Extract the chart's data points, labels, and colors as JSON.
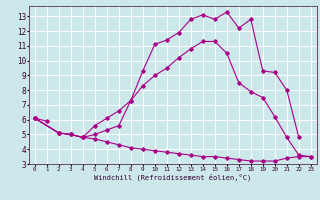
{
  "xlabel": "Windchill (Refroidissement éolien,°C)",
  "xlim": [
    -0.5,
    23.5
  ],
  "ylim": [
    3.0,
    13.7
  ],
  "xticks": [
    0,
    1,
    2,
    3,
    4,
    5,
    6,
    7,
    8,
    9,
    10,
    11,
    12,
    13,
    14,
    15,
    16,
    17,
    18,
    19,
    20,
    21,
    22,
    23
  ],
  "yticks": [
    3,
    4,
    5,
    6,
    7,
    8,
    9,
    10,
    11,
    12,
    13
  ],
  "bg_color": "#cce8ea",
  "line_color": "#aa0088",
  "grid_color": "#ffffff",
  "line1_x": [
    0,
    1
  ],
  "line1_y": [
    6.1,
    5.9
  ],
  "line2_x": [
    0,
    2,
    3,
    4,
    5,
    6,
    7,
    8,
    9,
    10,
    11,
    12,
    13,
    14,
    15,
    16,
    17,
    18,
    19,
    20,
    21,
    22,
    23
  ],
  "line2_y": [
    6.1,
    5.1,
    5.0,
    4.8,
    5.6,
    6.1,
    6.6,
    7.3,
    8.3,
    9.0,
    9.5,
    10.2,
    10.8,
    11.3,
    11.3,
    10.5,
    8.5,
    7.9,
    7.5,
    6.2,
    4.8,
    3.6,
    3.5
  ],
  "line3_x": [
    0,
    2,
    3,
    4,
    5,
    6,
    7,
    8,
    9,
    10,
    11,
    12,
    13,
    14,
    15,
    16,
    17,
    18,
    19,
    20,
    21,
    22
  ],
  "line3_y": [
    6.1,
    5.1,
    5.0,
    4.8,
    5.0,
    5.3,
    5.6,
    7.3,
    9.3,
    11.1,
    11.4,
    11.9,
    12.8,
    13.1,
    12.8,
    13.3,
    12.2,
    12.8,
    9.3,
    9.2,
    8.0,
    4.8
  ],
  "line4_x": [
    0,
    2,
    3,
    4,
    5,
    6,
    7,
    8,
    9,
    10,
    11,
    12,
    13,
    14,
    15,
    16,
    17,
    18,
    19,
    20,
    21,
    22,
    23
  ],
  "line4_y": [
    6.1,
    5.1,
    5.0,
    4.8,
    4.7,
    4.5,
    4.3,
    4.1,
    4.0,
    3.9,
    3.8,
    3.7,
    3.6,
    3.5,
    3.5,
    3.4,
    3.3,
    3.2,
    3.2,
    3.2,
    3.4,
    3.5,
    3.5
  ]
}
